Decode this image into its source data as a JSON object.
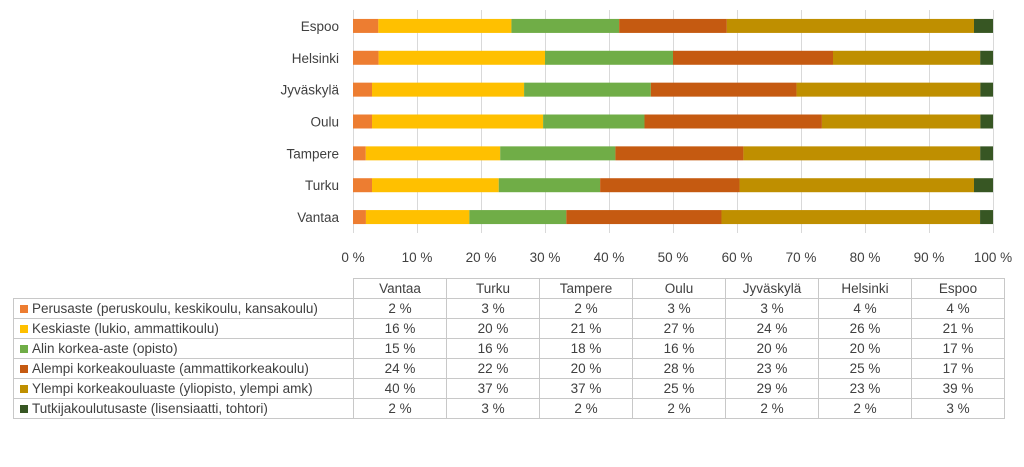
{
  "chart_data": {
    "type": "bar",
    "orientation": "horizontal",
    "stacked": "percent",
    "categories": [
      "Espoo",
      "Helsinki",
      "Jyväskylä",
      "Oulu",
      "Tampere",
      "Turku",
      "Vantaa"
    ],
    "x_ticks": [
      "0 %",
      "10 %",
      "20 %",
      "30 %",
      "40 %",
      "50 %",
      "60 %",
      "70 %",
      "80 %",
      "90 %",
      "100 %"
    ],
    "xlim": [
      0,
      100
    ],
    "grid": true,
    "series": [
      {
        "name": "Perusaste (peruskoulu, keskikoulu, kansakoulu)",
        "color": "#ED7D31",
        "values": [
          4,
          4,
          3,
          3,
          2,
          3,
          2
        ]
      },
      {
        "name": "Keskiaste (lukio, ammattikoulu)",
        "color": "#FFC000",
        "values": [
          21,
          26,
          24,
          27,
          21,
          20,
          16
        ]
      },
      {
        "name": "Alin korkea-aste (opisto)",
        "color": "#70AD47",
        "values": [
          17,
          20,
          20,
          16,
          18,
          16,
          15
        ]
      },
      {
        "name": "Alempi korkeakouluaste (ammattikorkeakoulu)",
        "color": "#C55A11",
        "values": [
          17,
          25,
          23,
          28,
          20,
          22,
          24
        ]
      },
      {
        "name": "Ylempi korkeakouluaste (yliopisto, ylempi amk)",
        "color": "#BF8F00",
        "values": [
          39,
          23,
          29,
          25,
          37,
          37,
          40
        ]
      },
      {
        "name": "Tutkijakoulutusaste (lisensiaatti, tohtori)",
        "color": "#375623",
        "values": [
          3,
          2,
          2,
          2,
          2,
          3,
          2
        ]
      }
    ]
  },
  "table": {
    "columns": [
      "Vantaa",
      "Turku",
      "Tampere",
      "Oulu",
      "Jyväskylä",
      "Helsinki",
      "Espoo"
    ],
    "rows": [
      {
        "label": "Perusaste (peruskoulu, keskikoulu, kansakoulu)",
        "color": "#ED7D31",
        "cells": [
          "2 %",
          "3 %",
          "2 %",
          "3 %",
          "3 %",
          "4 %",
          "4 %"
        ]
      },
      {
        "label": "Keskiaste (lukio, ammattikoulu)",
        "color": "#FFC000",
        "cells": [
          "16 %",
          "20 %",
          "21 %",
          "27 %",
          "24 %",
          "26 %",
          "21 %"
        ]
      },
      {
        "label": "Alin korkea-aste (opisto)",
        "color": "#70AD47",
        "cells": [
          "15 %",
          "16 %",
          "18 %",
          "16 %",
          "20 %",
          "20 %",
          "17 %"
        ]
      },
      {
        "label": "Alempi korkeakouluaste (ammattikorkeakoulu)",
        "color": "#C55A11",
        "cells": [
          "24 %",
          "22 %",
          "20 %",
          "28 %",
          "23 %",
          "25 %",
          "17 %"
        ]
      },
      {
        "label": "Ylempi korkeakouluaste (yliopisto, ylempi amk)",
        "color": "#BF8F00",
        "cells": [
          "40 %",
          "37 %",
          "37 %",
          "25 %",
          "29 %",
          "23 %",
          "39 %"
        ]
      },
      {
        "label": "Tutkijakoulutusaste (lisensiaatti, tohtori)",
        "color": "#375623",
        "cells": [
          "2 %",
          "3 %",
          "2 %",
          "2 %",
          "2 %",
          "2 %",
          "3 %"
        ]
      }
    ]
  }
}
